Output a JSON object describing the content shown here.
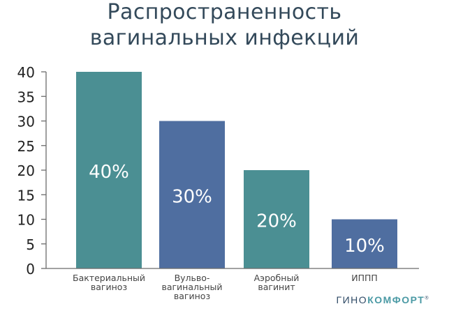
{
  "title_lines": [
    "Распространенность",
    "вагинальных инфекций"
  ],
  "chart_data": {
    "type": "bar",
    "title": "Распространенность вагинальных инфекций",
    "categories": [
      [
        "Бактериальный",
        "вагиноз"
      ],
      [
        "Вульво-",
        "вагинальный",
        "вагиноз"
      ],
      [
        "Аэробный",
        "вагинит"
      ],
      [
        "ИППП"
      ]
    ],
    "values": [
      40,
      30,
      20,
      10
    ],
    "data_labels": [
      "40%",
      "30%",
      "20%",
      "10%"
    ],
    "bar_colors": [
      "#4b8f93",
      "#4f6ea0",
      "#4b8f93",
      "#4f6ea0"
    ],
    "ylim": [
      0,
      40
    ],
    "yticks": [
      0,
      5,
      10,
      15,
      20,
      25,
      30,
      35,
      40
    ],
    "xlabel": "",
    "ylabel": "",
    "grid": false
  },
  "colors": {
    "title": "#33495a",
    "axis": "#6b6b6b",
    "tick_label": "#222222",
    "category_label": "#444444",
    "data_label": "#ffffff",
    "teal": "#4b8f93",
    "blue": "#4f6ea0"
  },
  "brand": {
    "part1": "ГИНО",
    "part2": "КОМФОРТ",
    "reg": "®"
  }
}
